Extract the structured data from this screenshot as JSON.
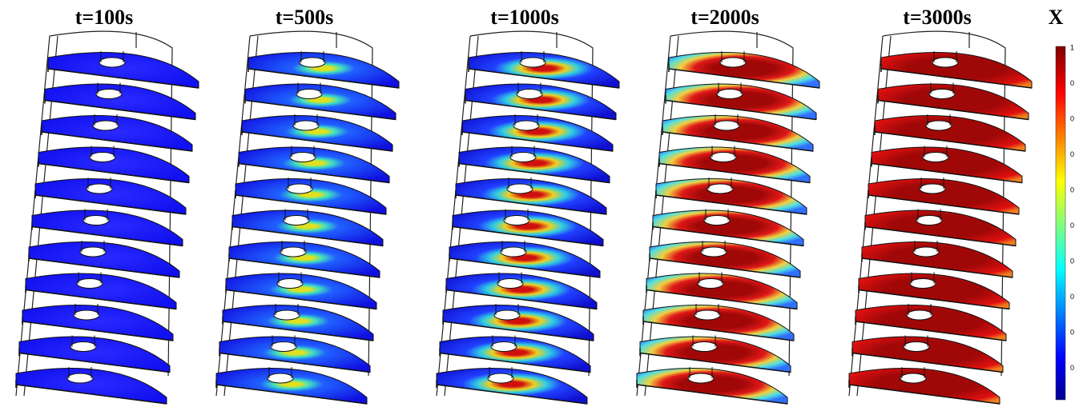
{
  "panels": [
    {
      "title": "t=100s"
    },
    {
      "title": "t=500s"
    },
    {
      "title": "t=1000s"
    },
    {
      "title": "t=2000s"
    },
    {
      "title": "t=3000s"
    }
  ],
  "colorbar": {
    "title": "X",
    "tick_labels": [
      "1",
      "0",
      "0",
      "0",
      "0",
      "0",
      "0",
      "0",
      "0",
      "0"
    ]
  }
}
